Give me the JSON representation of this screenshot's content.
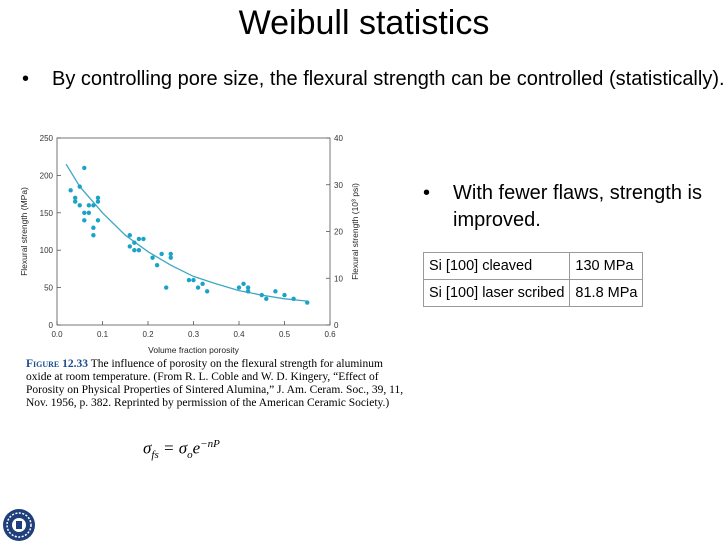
{
  "slide": {
    "title": "Weibull statistics",
    "bullet_1": "By controlling pore size, the flexural strength can be controlled (statistically).",
    "bullet_2": "With fewer flaws, strength is improved.",
    "bullet_marker": "•"
  },
  "table": {
    "rows": [
      {
        "label": "Si [100] cleaved",
        "value": "130 MPa"
      },
      {
        "label": "Si [100] laser scribed",
        "value": "81.8 MPa"
      }
    ]
  },
  "caption": {
    "figure_label": "Figure 12.33",
    "text": "The influence of porosity on the flexural strength for aluminum oxide at room temperature. (From R. L. Coble and W. D. Kingery, “Effect of Porosity on Physical Properties of Sintered Alumina,” J. Am. Ceram. Soc., 39, 11, Nov. 1956, p. 382. Reprinted by permission of the American Ceramic Society.)"
  },
  "formula": {
    "lhs_symbol": "σ",
    "lhs_sub": "fs",
    "equals": "=",
    "rhs_symbol": "σ",
    "rhs_sub": "o",
    "base": "e",
    "exponent": "−nP"
  },
  "chart_data": {
    "type": "scatter",
    "xlabel": "Volume fraction porosity",
    "ylabel": "Flexural strength (MPa)",
    "y2label": "Flexural strength (10³ psi)",
    "xlim": [
      0.0,
      0.6
    ],
    "ylim": [
      0,
      250
    ],
    "y2lim": [
      0,
      40
    ],
    "x_ticks": [
      "0.0",
      "0.1",
      "0.2",
      "0.3",
      "0.4",
      "0.5",
      "0.6"
    ],
    "y_ticks": [
      "0",
      "50",
      "100",
      "150",
      "200",
      "250"
    ],
    "y2_ticks": [
      "0",
      "10",
      "20",
      "30",
      "40"
    ],
    "grid": false,
    "series": [
      {
        "kind": "points",
        "x": [
          0.03,
          0.04,
          0.04,
          0.05,
          0.05,
          0.06,
          0.06,
          0.06,
          0.07,
          0.07,
          0.08,
          0.08,
          0.08,
          0.09,
          0.09,
          0.09,
          0.16,
          0.16,
          0.17,
          0.17,
          0.18,
          0.18,
          0.19,
          0.21,
          0.22,
          0.23,
          0.24,
          0.25,
          0.25,
          0.29,
          0.3,
          0.31,
          0.32,
          0.33,
          0.4,
          0.41,
          0.42,
          0.42,
          0.45,
          0.46,
          0.48,
          0.5,
          0.52,
          0.55
        ],
        "y": [
          180,
          170,
          165,
          185,
          160,
          150,
          210,
          140,
          160,
          150,
          130,
          120,
          160,
          165,
          140,
          170,
          120,
          105,
          100,
          110,
          100,
          115,
          115,
          90,
          80,
          95,
          50,
          95,
          90,
          60,
          60,
          50,
          55,
          45,
          50,
          55,
          50,
          45,
          40,
          35,
          45,
          40,
          35,
          30
        ]
      },
      {
        "kind": "fit_line",
        "x": [
          0.02,
          0.05,
          0.1,
          0.15,
          0.2,
          0.25,
          0.3,
          0.35,
          0.4,
          0.45,
          0.5,
          0.55
        ],
        "y": [
          215,
          185,
          150,
          120,
          98,
          80,
          65,
          55,
          46,
          40,
          35,
          32
        ]
      }
    ]
  }
}
